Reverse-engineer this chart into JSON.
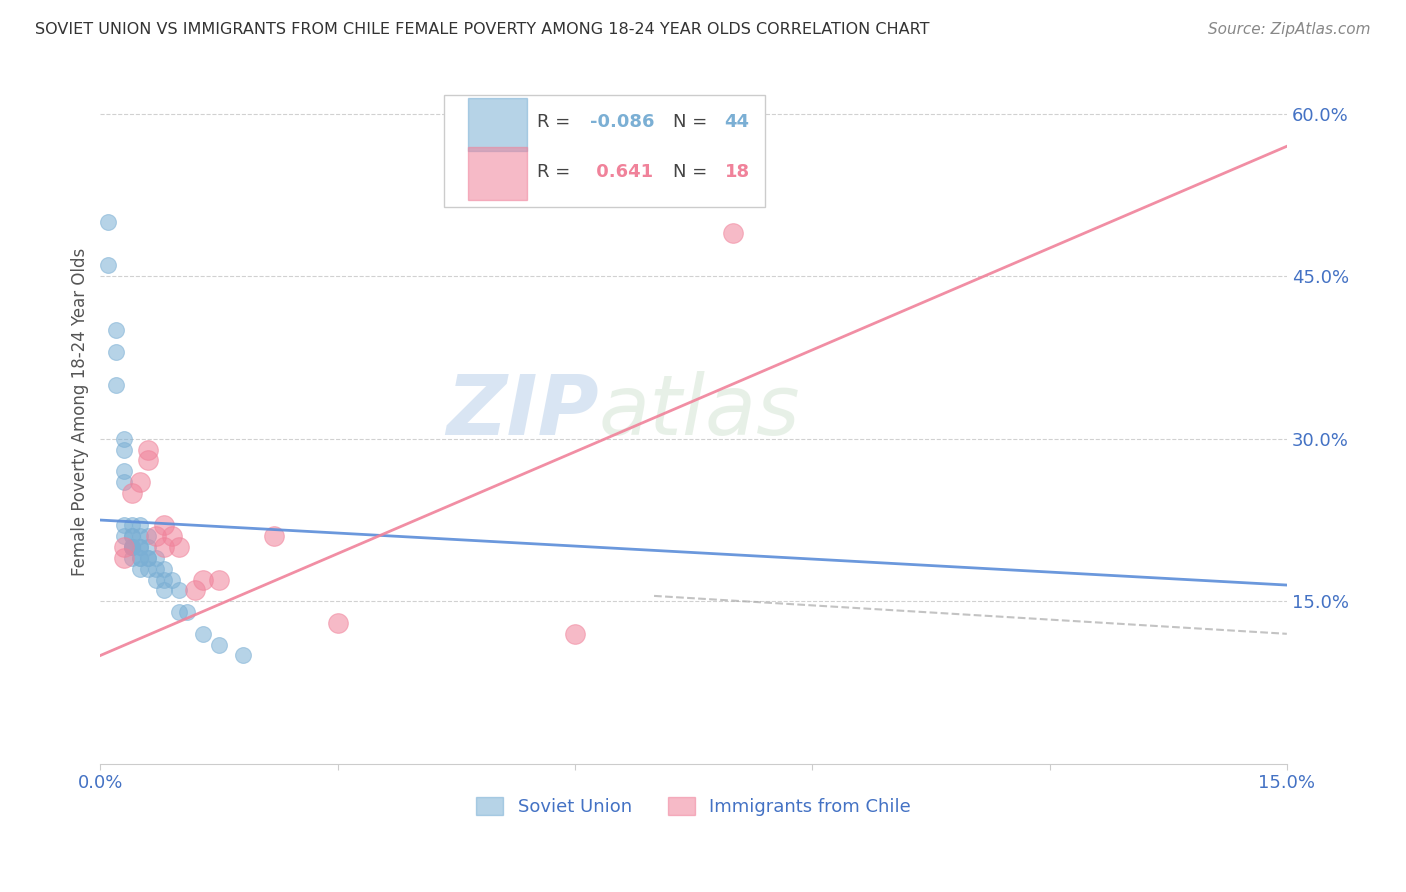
{
  "title": "SOVIET UNION VS IMMIGRANTS FROM CHILE FEMALE POVERTY AMONG 18-24 YEAR OLDS CORRELATION CHART",
  "source": "Source: ZipAtlas.com",
  "ylabel": "Female Poverty Among 18-24 Year Olds",
  "xlim": [
    0.0,
    0.15
  ],
  "ylim": [
    0.0,
    0.65
  ],
  "soviet_color": "#7bafd4",
  "chile_color": "#f0829a",
  "title_color": "#333333",
  "tick_color": "#4472c4",
  "grid_color": "#cccccc",
  "background_color": "#ffffff",
  "watermark_zip": "ZIP",
  "watermark_atlas": "atlas",
  "soviet_r": -0.086,
  "soviet_n": 44,
  "chile_r": 0.641,
  "chile_n": 18,
  "soviet_x": [
    0.001,
    0.001,
    0.002,
    0.002,
    0.002,
    0.003,
    0.003,
    0.003,
    0.003,
    0.003,
    0.003,
    0.004,
    0.004,
    0.004,
    0.004,
    0.004,
    0.004,
    0.004,
    0.004,
    0.005,
    0.005,
    0.005,
    0.005,
    0.005,
    0.005,
    0.005,
    0.006,
    0.006,
    0.006,
    0.006,
    0.006,
    0.007,
    0.007,
    0.007,
    0.008,
    0.008,
    0.008,
    0.009,
    0.01,
    0.01,
    0.011,
    0.013,
    0.015,
    0.018
  ],
  "soviet_y": [
    0.5,
    0.46,
    0.4,
    0.38,
    0.35,
    0.3,
    0.29,
    0.27,
    0.26,
    0.22,
    0.21,
    0.22,
    0.21,
    0.21,
    0.2,
    0.2,
    0.2,
    0.2,
    0.19,
    0.22,
    0.21,
    0.2,
    0.2,
    0.19,
    0.19,
    0.18,
    0.21,
    0.2,
    0.19,
    0.19,
    0.18,
    0.19,
    0.18,
    0.17,
    0.18,
    0.17,
    0.16,
    0.17,
    0.16,
    0.14,
    0.14,
    0.12,
    0.11,
    0.1
  ],
  "chile_x": [
    0.003,
    0.003,
    0.004,
    0.005,
    0.006,
    0.006,
    0.007,
    0.008,
    0.008,
    0.009,
    0.01,
    0.012,
    0.013,
    0.015,
    0.022,
    0.03,
    0.06,
    0.08
  ],
  "chile_y": [
    0.19,
    0.2,
    0.25,
    0.26,
    0.28,
    0.29,
    0.21,
    0.2,
    0.22,
    0.21,
    0.2,
    0.16,
    0.17,
    0.17,
    0.21,
    0.13,
    0.12,
    0.49
  ],
  "soviet_line_x": [
    0.0,
    0.15
  ],
  "soviet_line_y": [
    0.225,
    0.165
  ],
  "chile_line_x": [
    0.0,
    0.15
  ],
  "chile_line_y": [
    0.1,
    0.57
  ]
}
